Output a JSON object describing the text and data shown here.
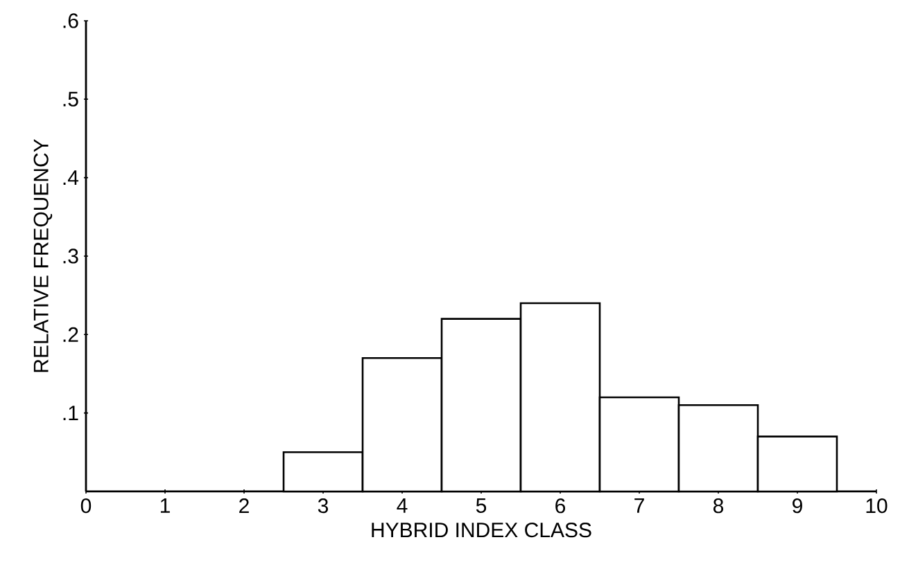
{
  "chart_data": {
    "type": "histogram",
    "xlabel": "HYBRID INDEX CLASS",
    "ylabel": "RELATIVE FREQUENCY",
    "bins": [
      2.5,
      3.5,
      4.5,
      5.5,
      6.5,
      7.5,
      8.5,
      9.5
    ],
    "values": [
      0.05,
      0.17,
      0.22,
      0.24,
      0.12,
      0.11,
      0.07
    ],
    "color": "#ffffff",
    "xlim": [
      0,
      10
    ],
    "xticks": [
      0,
      1,
      2,
      3,
      4,
      5,
      6,
      7,
      8,
      9,
      10
    ],
    "ylim": [
      0,
      0.6
    ],
    "yticks": [
      {
        "value": 0.1,
        "label": ".1"
      },
      {
        "value": 0.2,
        "label": ".2"
      },
      {
        "value": 0.3,
        "label": ".3"
      },
      {
        "value": 0.4,
        "label": ".4"
      },
      {
        "value": 0.5,
        "label": ".5"
      },
      {
        "value": 0.6,
        "label": ".6"
      }
    ],
    "grid": false
  }
}
